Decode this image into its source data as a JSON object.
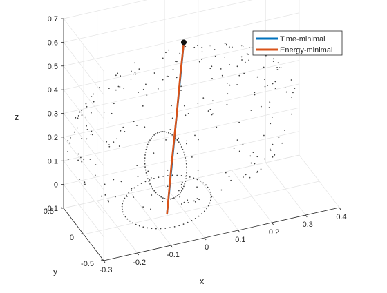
{
  "chart_data": {
    "type": "scatter3d",
    "title": "",
    "xlabel": "x",
    "ylabel": "y",
    "zlabel": "z",
    "xlim": [
      -0.3,
      0.4
    ],
    "ylim": [
      -0.5,
      0.5
    ],
    "zlim": [
      -0.1,
      0.7
    ],
    "xticks": [
      -0.3,
      -0.2,
      -0.1,
      0,
      0.1,
      0.2,
      0.3,
      0.4
    ],
    "yticks": [
      -0.5,
      0,
      0.5
    ],
    "zticks": [
      -0.1,
      0,
      0.1,
      0.2,
      0.3,
      0.4,
      0.5,
      0.6,
      0.7
    ],
    "grid": true,
    "legend_position": "top-right",
    "series": [
      {
        "name": "Time-minimal",
        "color": "#0072BD",
        "points": [
          [
            -0.05,
            0.02,
            -0.1
          ],
          [
            0.0,
            0.02,
            0.61
          ]
        ]
      },
      {
        "name": "Energy-minimal",
        "color": "#D95319",
        "points": [
          [
            -0.05,
            0.02,
            -0.1
          ],
          [
            -0.037,
            0.02,
            0.1
          ],
          [
            -0.022,
            0.02,
            0.3
          ],
          [
            -0.01,
            0.02,
            0.48
          ],
          [
            0.0,
            0.02,
            0.61
          ]
        ]
      }
    ],
    "goal_marker": [
      0.0,
      0.02,
      0.61
    ],
    "point_cloud": {
      "description_color": "#404040",
      "sphere_center": [
        0.0,
        0.05,
        0.25
      ],
      "sphere_radius": 0.34
    }
  }
}
